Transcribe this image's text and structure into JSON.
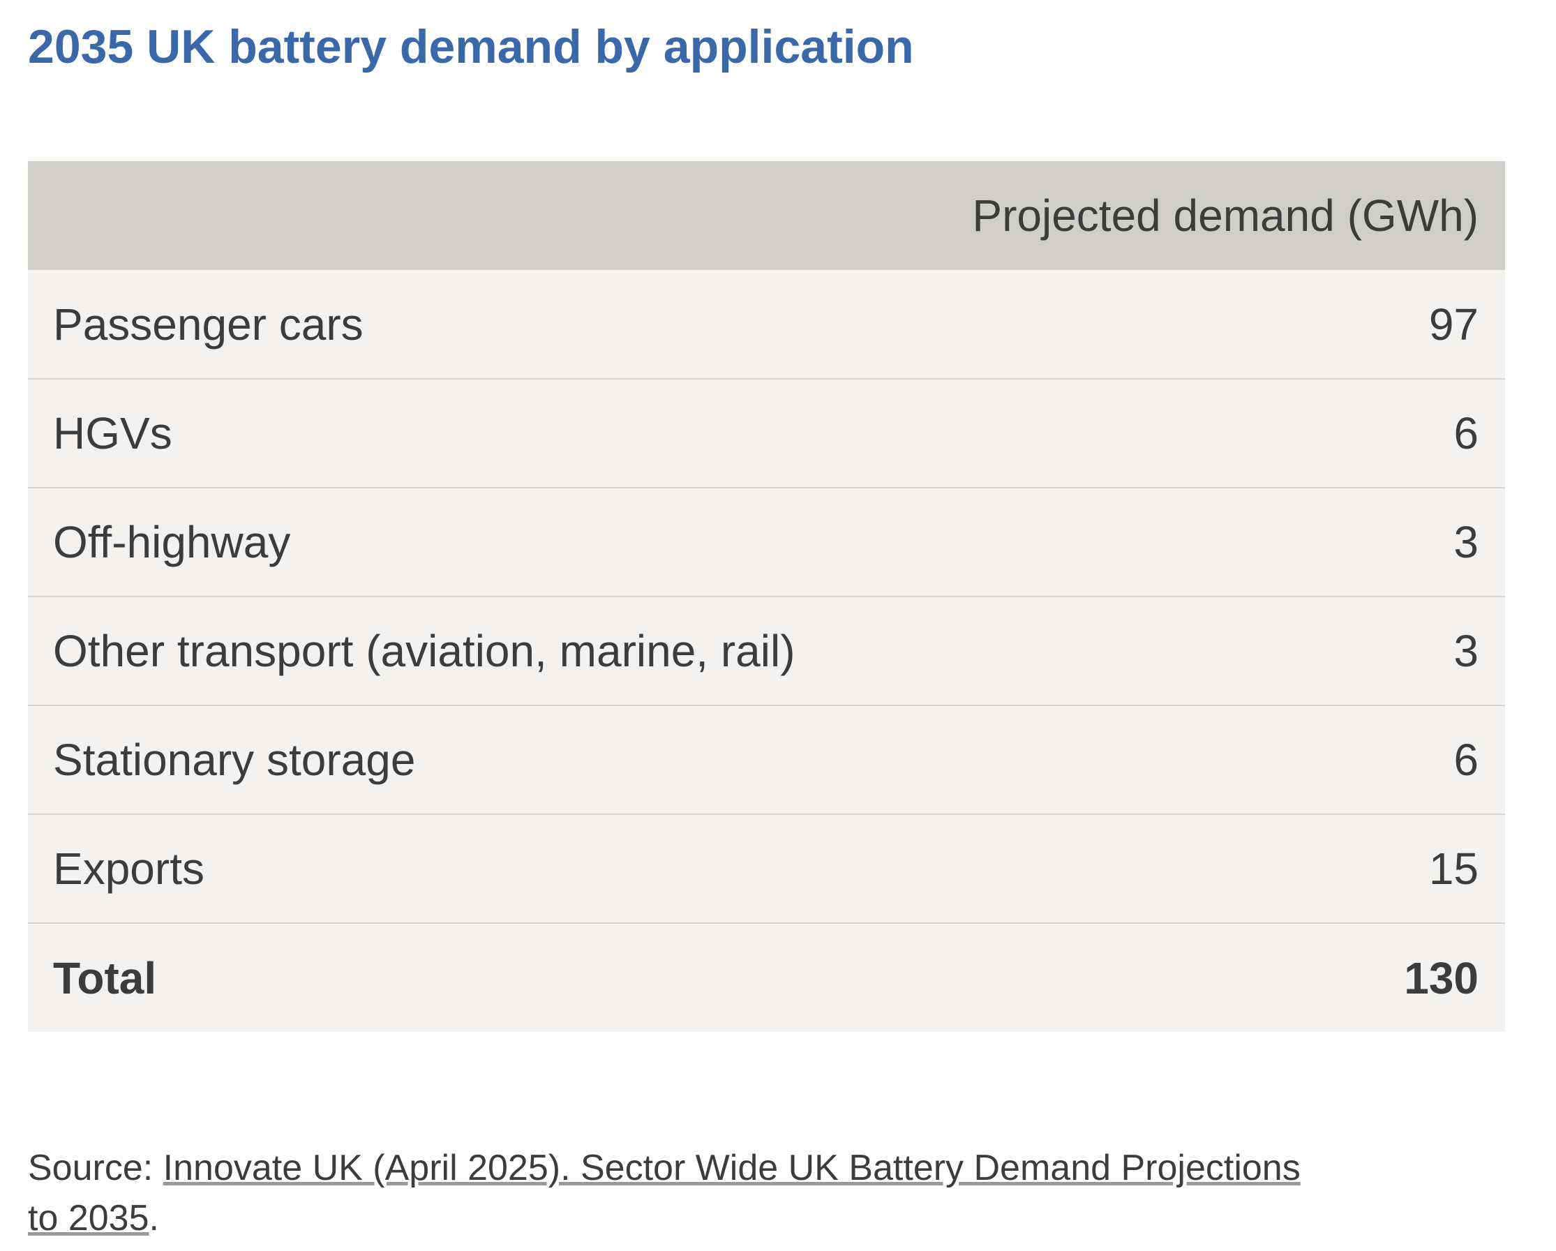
{
  "title": "2035 UK battery demand by application",
  "table": {
    "header": "Projected demand (GWh)",
    "rows": [
      [
        "Passenger cars",
        97
      ],
      [
        "HGVs",
        6
      ],
      [
        "Off-highway",
        3
      ],
      [
        "Other transport (aviation, marine, rail)",
        3
      ],
      [
        "Stationary storage",
        6
      ],
      [
        "Exports",
        15
      ]
    ],
    "total": [
      "Total",
      130
    ]
  },
  "source": {
    "prefix": "Source:",
    "link": "Innovate UK (April 2025). Sector Wide UK Battery Demand Projections to 2035",
    "suffix": "."
  }
}
